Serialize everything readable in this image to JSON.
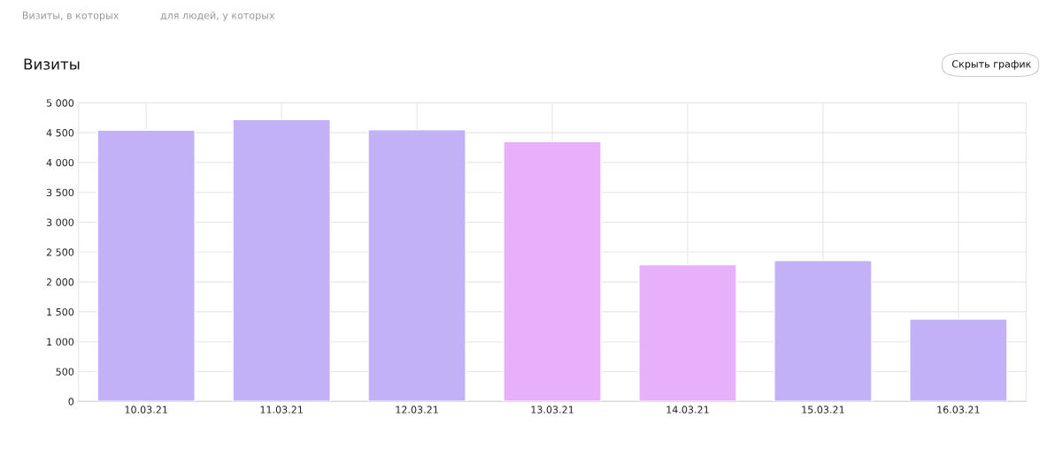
{
  "chart_data": {
    "type": "bar",
    "title": "Визиты",
    "annotations": [
      "Визиты, в которых",
      "для людей, у которых",
      "Скрыть график"
    ],
    "categories": [
      "10.03.21",
      "11.03.21",
      "12.03.21",
      "13.03.21",
      "14.03.21",
      "15.03.21",
      "16.03.21"
    ],
    "values": [
      4540,
      4720,
      4550,
      4350,
      2290,
      2360,
      1380
    ],
    "colors": [
      "#c3b1f8",
      "#c3b1f8",
      "#c3b1f8",
      "#e8b0fa",
      "#e8b0fa",
      "#c3b1f8",
      "#c3b1f8"
    ],
    "ylim": [
      0,
      5000
    ],
    "yticks": [
      0,
      500,
      1000,
      1500,
      2000,
      2500,
      3000,
      3500,
      4000,
      4500,
      {
        "value": 5000,
        "label": "5 000"
      }
    ],
    "grid": true
  }
}
